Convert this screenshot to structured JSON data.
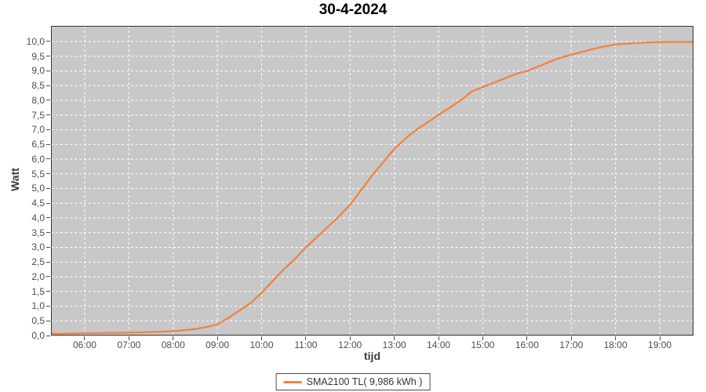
{
  "chart_data": {
    "type": "line",
    "title": "30-4-2024",
    "xlabel": "tijd",
    "ylabel": "Watt",
    "x_range": [
      5.238,
      19.762
    ],
    "y_range": [
      0,
      10.533
    ],
    "grid": "white dashed on gray plot background",
    "legend_position": "bottom-center",
    "x_ticks": [
      {
        "v": 6,
        "label": "06:00"
      },
      {
        "v": 7,
        "label": "07:00"
      },
      {
        "v": 8,
        "label": "08:00"
      },
      {
        "v": 9,
        "label": "09:00"
      },
      {
        "v": 10,
        "label": "10:00"
      },
      {
        "v": 11,
        "label": "11:00"
      },
      {
        "v": 12,
        "label": "12:00"
      },
      {
        "v": 13,
        "label": "13:00"
      },
      {
        "v": 14,
        "label": "14:00"
      },
      {
        "v": 15,
        "label": "15:00"
      },
      {
        "v": 16,
        "label": "16:00"
      },
      {
        "v": 17,
        "label": "17:00"
      },
      {
        "v": 18,
        "label": "18:00"
      },
      {
        "v": 19,
        "label": "19:00"
      }
    ],
    "y_ticks": [
      {
        "v": 0,
        "label": "0,0"
      },
      {
        "v": 0.5,
        "label": "0,5"
      },
      {
        "v": 1,
        "label": "1,0"
      },
      {
        "v": 1.5,
        "label": "1,5"
      },
      {
        "v": 2,
        "label": "2,0"
      },
      {
        "v": 2.5,
        "label": "2,5"
      },
      {
        "v": 3,
        "label": "3,0"
      },
      {
        "v": 3.5,
        "label": "3,5"
      },
      {
        "v": 4,
        "label": "4,0"
      },
      {
        "v": 4.5,
        "label": "4,5"
      },
      {
        "v": 5,
        "label": "5,0"
      },
      {
        "v": 5.5,
        "label": "5,5"
      },
      {
        "v": 6,
        "label": "6,0"
      },
      {
        "v": 6.5,
        "label": "6,5"
      },
      {
        "v": 7,
        "label": "7,0"
      },
      {
        "v": 7.5,
        "label": "7,5"
      },
      {
        "v": 8,
        "label": "8,0"
      },
      {
        "v": 8.5,
        "label": "8,5"
      },
      {
        "v": 9,
        "label": "9,0"
      },
      {
        "v": 9.5,
        "label": "9,5"
      },
      {
        "v": 10,
        "label": "10,0"
      }
    ],
    "series": [
      {
        "name": "SMA2100 TL",
        "legend_label": "SMA2100 TL( 9,986 kWh )",
        "total_energy": "9,986 kWh",
        "color": "#F08442",
        "x": [
          5.24,
          5.5,
          5.75,
          6,
          6.25,
          6.5,
          6.75,
          7,
          7.25,
          7.5,
          7.75,
          8,
          8.25,
          8.5,
          8.75,
          9,
          9.25,
          9.5,
          9.75,
          10,
          10.25,
          10.5,
          10.75,
          11,
          11.25,
          11.5,
          11.75,
          12,
          12.25,
          12.5,
          12.75,
          13,
          13.25,
          13.5,
          13.75,
          14,
          14.25,
          14.5,
          14.75,
          15,
          15.25,
          15.5,
          15.75,
          16,
          16.25,
          16.5,
          16.75,
          17,
          17.25,
          17.5,
          17.75,
          18,
          18.25,
          18.5,
          18.75,
          19,
          19.25,
          19.5,
          19.76
        ],
        "y": [
          0.06,
          0.06,
          0.07,
          0.08,
          0.08,
          0.09,
          0.09,
          0.1,
          0.11,
          0.12,
          0.13,
          0.15,
          0.18,
          0.22,
          0.29,
          0.38,
          0.6,
          0.85,
          1.1,
          1.45,
          1.85,
          2.25,
          2.6,
          3,
          3.35,
          3.7,
          4.05,
          4.45,
          4.95,
          5.45,
          5.9,
          6.35,
          6.7,
          7,
          7.25,
          7.5,
          7.75,
          8,
          8.3,
          8.45,
          8.6,
          8.75,
          8.9,
          9,
          9.15,
          9.3,
          9.45,
          9.55,
          9.65,
          9.75,
          9.83,
          9.9,
          9.93,
          9.95,
          9.97,
          9.98,
          9.985,
          9.986,
          9.986
        ]
      }
    ]
  },
  "colors": {
    "page_bg": "#FFFFFF",
    "plot_bg": "#C8C8C8",
    "grid": "#FFFFFF",
    "plot_border": "#333333",
    "series": "#F08442",
    "tick_text": "#4D4D4D",
    "title_text": "#000000",
    "legend_border": "#4D4D4D"
  }
}
